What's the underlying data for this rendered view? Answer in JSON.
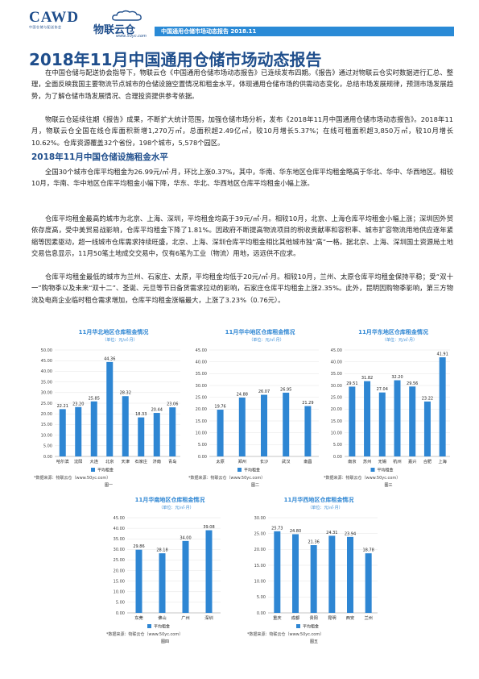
{
  "header": {
    "cawd": "CAWD",
    "cawd_sub": "中国仓储与配送协会",
    "wl_name": "物联云仓",
    "wl_url": "www.50yc.com",
    "bar_text": "中国通用仓储市场动态报告 2018.11"
  },
  "title": "2018年11月中国通用仓储市场动态报告",
  "intro": [
    "在中国仓储与配送协会指导下，物联云仓《中国通用仓储市场动态报告》已连续发布四期。《报告》通过对物联云仓实时数据进行汇总、整理，全面反映我国主要物流节点城市的仓储设施空置情况和租金水平，体现通用仓储市场的供需动态变化，总结市场发展规律，预测市场发展趋势，为了解仓储市场发展情况、合理投资提供参考依据。",
    "物联云仓延续往期《报告》成果，不断扩大统计范围，加强仓储市场分析，发布《2018年11月中国通用仓储市场动态报告》。2018年11月，物联云仓全国在线仓库面积新增1,270万㎡，总面积超2.49亿㎡，较10月增长5.37%；在线可租面积超3,850万㎡，较10月增长10.62%。仓库资源覆盖32个省份，198个城市，5,578个园区。"
  ],
  "section_title": "2018年11月中国仓储设施租金水平",
  "section_paras": [
    "全国30个城市仓库平均租金为26.99元/㎡·月，环比上涨0.37%，其中，华南、华东地区仓库平均租金略高于华北、华中、华西地区。相较10月，华南、华中地区仓库平均租金小幅下降，华东、华北、华西地区仓库平均租金小幅上涨。",
    "仓库平均租金最高的城市为北京、上海、深圳，平均租金均高于39元/㎡·月。相较10月，北京、上海仓库平均租金小幅上涨；深圳因外贸依存度高，受中美贸易战影响，仓库平均租金下降了1.81%。因政府不断提高物流项目的税收贡献率和容积率、城市扩容物流用地供应逐年紧缩等因素驱动，超一线城市仓库需求持续旺盛，北京、上海、深圳仓库平均租金相比其他城市独“高”一格。据北京、上海、深圳国土资源局土地交易信息显示，11月50笔土地成交交易中，仅有6笔为工业（物流）用地，远远供不应求。",
    "仓库平均租金最低的城市为兰州、石家庄、太原，平均租金均低于20元/㎡·月。相较10月，兰州、太原仓库平均租金保持平稳；受“双十一”购物季以及未来“双十二”、圣诞、元旦等节日备货需求拉动的影响，石家庄仓库平均租金上涨2.35%。此外，昆明因购物季影响，第三方物流及电商企业临时租仓需求增加，仓库平均租金涨幅最大，上涨了3.23%（0.76元）。"
  ],
  "chart_data": [
    {
      "type": "bar",
      "title": "11月华北地区仓库租金情况",
      "unit": "（单位：元/㎡·月）",
      "categories": [
        "哈尔滨",
        "沈阳",
        "大连",
        "北京",
        "天津",
        "石家庄",
        "济南",
        "青岛"
      ],
      "values": [
        22.21,
        23.2,
        25.85,
        44.36,
        28.32,
        18.33,
        20.44,
        23.06
      ],
      "ylim": [
        0,
        50
      ],
      "yticks": [
        "0.00",
        "5.00",
        "10.00",
        "15.00",
        "20.00",
        "25.00",
        "30.00",
        "35.00",
        "40.00",
        "45.00",
        "50.00"
      ],
      "legend": "平均租金",
      "source": "*数据来源：物联云仓（www.50yc.com）",
      "caption": "图一",
      "color": "#2e86d3"
    },
    {
      "type": "bar",
      "title": "11月华中地区仓库租金情况",
      "unit": "（单位：元/㎡·月）",
      "categories": [
        "太原",
        "郑州",
        "长沙",
        "武汉",
        "南昌"
      ],
      "values": [
        19.76,
        24.88,
        26.07,
        26.95,
        21.29
      ],
      "ylim": [
        0,
        45
      ],
      "yticks": [
        "0.00",
        "5.00",
        "10.00",
        "15.00",
        "20.00",
        "25.00",
        "30.00",
        "35.00",
        "40.00",
        "45.00"
      ],
      "legend": "平均租金",
      "source": "*数据来源：物联云仓（www.50yc.com）",
      "caption": "图二",
      "color": "#2e86d3"
    },
    {
      "type": "bar",
      "title": "11月华东地区仓库租金情况",
      "unit": "（单位：元/㎡·月）",
      "categories": [
        "南京",
        "苏州",
        "无锡",
        "杭州",
        "嘉兴",
        "合肥",
        "上海"
      ],
      "values": [
        29.51,
        31.82,
        27.04,
        32.2,
        29.56,
        23.22,
        41.91
      ],
      "ylim": [
        0,
        45
      ],
      "yticks": [
        "0.00",
        "5.00",
        "10.00",
        "15.00",
        "20.00",
        "25.00",
        "30.00",
        "35.00",
        "40.00",
        "45.00"
      ],
      "legend": "平均租金",
      "source": "*数据来源：物联云仓（www.50yc.com）",
      "caption": "图三",
      "color": "#2e86d3"
    },
    {
      "type": "bar",
      "title": "11月华南地区仓库租金情况",
      "unit": "（单位：元/㎡·月）",
      "categories": [
        "东莞",
        "佛山",
        "广州",
        "深圳"
      ],
      "values": [
        29.86,
        28.18,
        34.0,
        39.08
      ],
      "ylim": [
        0,
        45
      ],
      "yticks": [
        "0.00",
        "5.00",
        "10.00",
        "15.00",
        "20.00",
        "25.00",
        "30.00",
        "35.00",
        "40.00",
        "45.00"
      ],
      "legend": "平均租金",
      "source": "*数据来源：物联云仓（www.50yc.com）",
      "caption": "图四",
      "color": "#2e86d3"
    },
    {
      "type": "bar",
      "title": "11月华西地区仓库租金情况",
      "unit": "（单位：元/㎡·月）",
      "categories": [
        "重庆",
        "成都",
        "贵阳",
        "昆明",
        "西安",
        "兰州"
      ],
      "values": [
        25.73,
        24.8,
        21.36,
        24.31,
        23.94,
        18.78
      ],
      "ylim": [
        0,
        30
      ],
      "yticks": [
        "0.00",
        "5.00",
        "10.00",
        "15.00",
        "20.00",
        "25.00",
        "30.00"
      ],
      "legend": "平均租金",
      "source": "*数据来源：物联云仓（www.50yc.com）",
      "caption": "图五",
      "color": "#2e86d3"
    }
  ]
}
